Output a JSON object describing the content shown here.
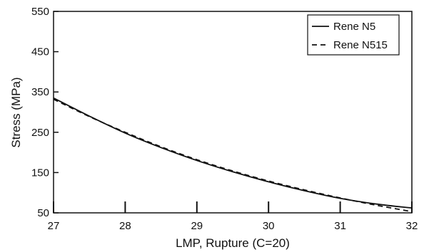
{
  "chart_data": {
    "type": "line",
    "title": "",
    "xlabel": "LMP, Rupture (C=20)",
    "ylabel": "Stress (MPa)",
    "xlim": [
      27,
      32
    ],
    "ylim": [
      50,
      550
    ],
    "x_ticks": [
      27,
      28,
      29,
      30,
      31,
      32
    ],
    "y_ticks": [
      50,
      150,
      250,
      350,
      450,
      550
    ],
    "x_tick_labels": [
      "27",
      "28",
      "29",
      "30",
      "31",
      "32"
    ],
    "y_tick_labels": [
      "50",
      "150",
      "250",
      "350",
      "450",
      "550"
    ],
    "grid": false,
    "legend_position": "top-right",
    "series": [
      {
        "name": "Rene N5",
        "line_style": "solid",
        "color": "#111111",
        "x": [
          27,
          27.5,
          28,
          28.5,
          29,
          29.5,
          30,
          30.5,
          31,
          31.5,
          32
        ],
        "y": [
          335,
          290,
          248,
          212,
          180,
          152,
          127,
          105,
          86,
          72,
          62
        ]
      },
      {
        "name": "Rene N515",
        "line_style": "dashed",
        "color": "#111111",
        "x": [
          27,
          27.5,
          28,
          28.5,
          29,
          29.5,
          30,
          30.5,
          31,
          31.5,
          32
        ],
        "y": [
          332,
          289,
          250,
          214,
          182,
          154,
          129,
          107,
          87,
          69,
          53
        ]
      }
    ]
  }
}
